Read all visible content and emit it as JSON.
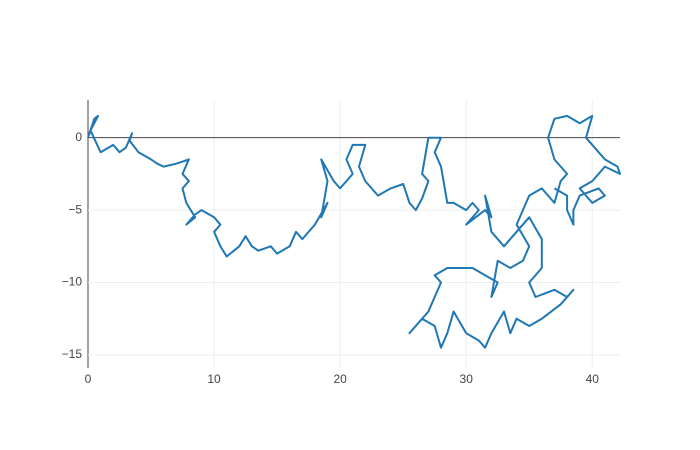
{
  "chart_data": {
    "type": "line",
    "series": [
      {
        "color": "#1f77b4",
        "x": [
          0,
          0.5,
          0.8,
          0.2,
          1,
          2,
          2.5,
          3,
          3.5,
          3.3,
          4,
          5,
          5.5,
          6,
          7,
          8,
          7.5,
          8,
          7.5,
          7.8,
          8.5,
          7.8,
          8.5,
          9,
          10,
          10.5,
          10,
          10.5,
          11,
          12,
          12.5,
          13,
          13.5,
          14.5,
          15,
          16,
          16.5,
          17,
          18,
          19,
          18.5,
          19,
          18.5,
          19.5,
          20,
          21,
          20.5,
          21,
          22,
          21.5,
          22,
          23,
          24,
          25,
          25.5,
          26,
          26.5,
          27,
          26.5,
          27,
          28,
          27.5,
          28,
          28.5,
          29,
          30,
          30.5,
          31,
          30,
          31.5,
          32,
          31.5,
          32,
          33,
          34,
          35,
          36,
          36,
          35,
          35.5,
          37,
          38,
          38.5,
          37.5,
          36,
          35,
          34,
          33.5,
          33,
          32,
          31.5,
          31,
          30,
          29,
          28.5,
          28,
          27.5,
          26.5,
          25.5,
          26,
          27,
          27.5,
          28,
          27.5,
          28.5,
          30.5,
          31.5,
          32.5,
          32,
          32.5,
          33.5,
          34.5,
          35,
          34,
          35,
          36,
          37,
          37.5,
          38,
          37,
          36.5,
          37,
          38,
          39,
          40,
          39.5,
          40.5,
          41,
          42,
          42.2,
          41,
          40,
          39,
          39.5,
          40,
          41,
          40.5,
          39,
          38.5,
          38.5,
          38,
          38,
          37
        ],
        "y": [
          0,
          1.3,
          1.5,
          0.5,
          -1,
          -0.5,
          -1,
          -0.7,
          0.3,
          -0.2,
          -1,
          -1.5,
          -1.8,
          -2,
          -1.8,
          -1.5,
          -2.5,
          -3,
          -3.5,
          -4.5,
          -5.5,
          -6,
          -5.3,
          -5,
          -5.5,
          -6,
          -6.5,
          -7.5,
          -8.2,
          -7.5,
          -6.8,
          -7.5,
          -7.8,
          -7.5,
          -8,
          -7.5,
          -6.5,
          -7,
          -6,
          -4.5,
          -5.5,
          -3,
          -1.5,
          -3,
          -3.5,
          -2.5,
          -1.5,
          -0.5,
          -0.5,
          -2,
          -3,
          -4,
          -3.5,
          -3.2,
          -4.5,
          -5,
          -4.2,
          -3,
          -2.5,
          0,
          0,
          -1,
          -2,
          -4.5,
          -4.5,
          -5,
          -4.5,
          -5,
          -6,
          -5,
          -5.5,
          -4,
          -6.5,
          -7.5,
          -6.5,
          -5.5,
          -7,
          -9,
          -10,
          -11,
          -10.5,
          -11,
          -10.5,
          -11.5,
          -12.5,
          -13,
          -12.5,
          -13.5,
          -12,
          -13.5,
          -14.5,
          -14,
          -13.5,
          -12,
          -13.5,
          -14.5,
          -13,
          -12.5,
          -13.5,
          -13,
          -12,
          -11,
          -10,
          -9.5,
          -9,
          -9,
          -9.5,
          -10,
          -11,
          -8.5,
          -9,
          -8.5,
          -7.5,
          -6,
          -4,
          -3.5,
          -4.5,
          -3,
          -2.5,
          -1.5,
          0,
          1.3,
          1.5,
          1,
          1.5,
          0,
          -1,
          -1.5,
          -2,
          -2.5,
          -2,
          -3,
          -3.5,
          -4,
          -4.5,
          -4,
          -3.5,
          -4,
          -5,
          -6,
          -5,
          -4,
          -3.5
        ]
      }
    ],
    "xlim": [
      0,
      42.2
    ],
    "ylim": [
      -15.9,
      2.6
    ],
    "xticks": [
      0,
      10,
      20,
      30,
      40
    ],
    "yticks": [
      {
        "value": -15,
        "label": "−15"
      },
      {
        "value": -10,
        "label": "−10"
      },
      {
        "value": -5,
        "label": "−5"
      },
      0
    ],
    "grid": true
  }
}
